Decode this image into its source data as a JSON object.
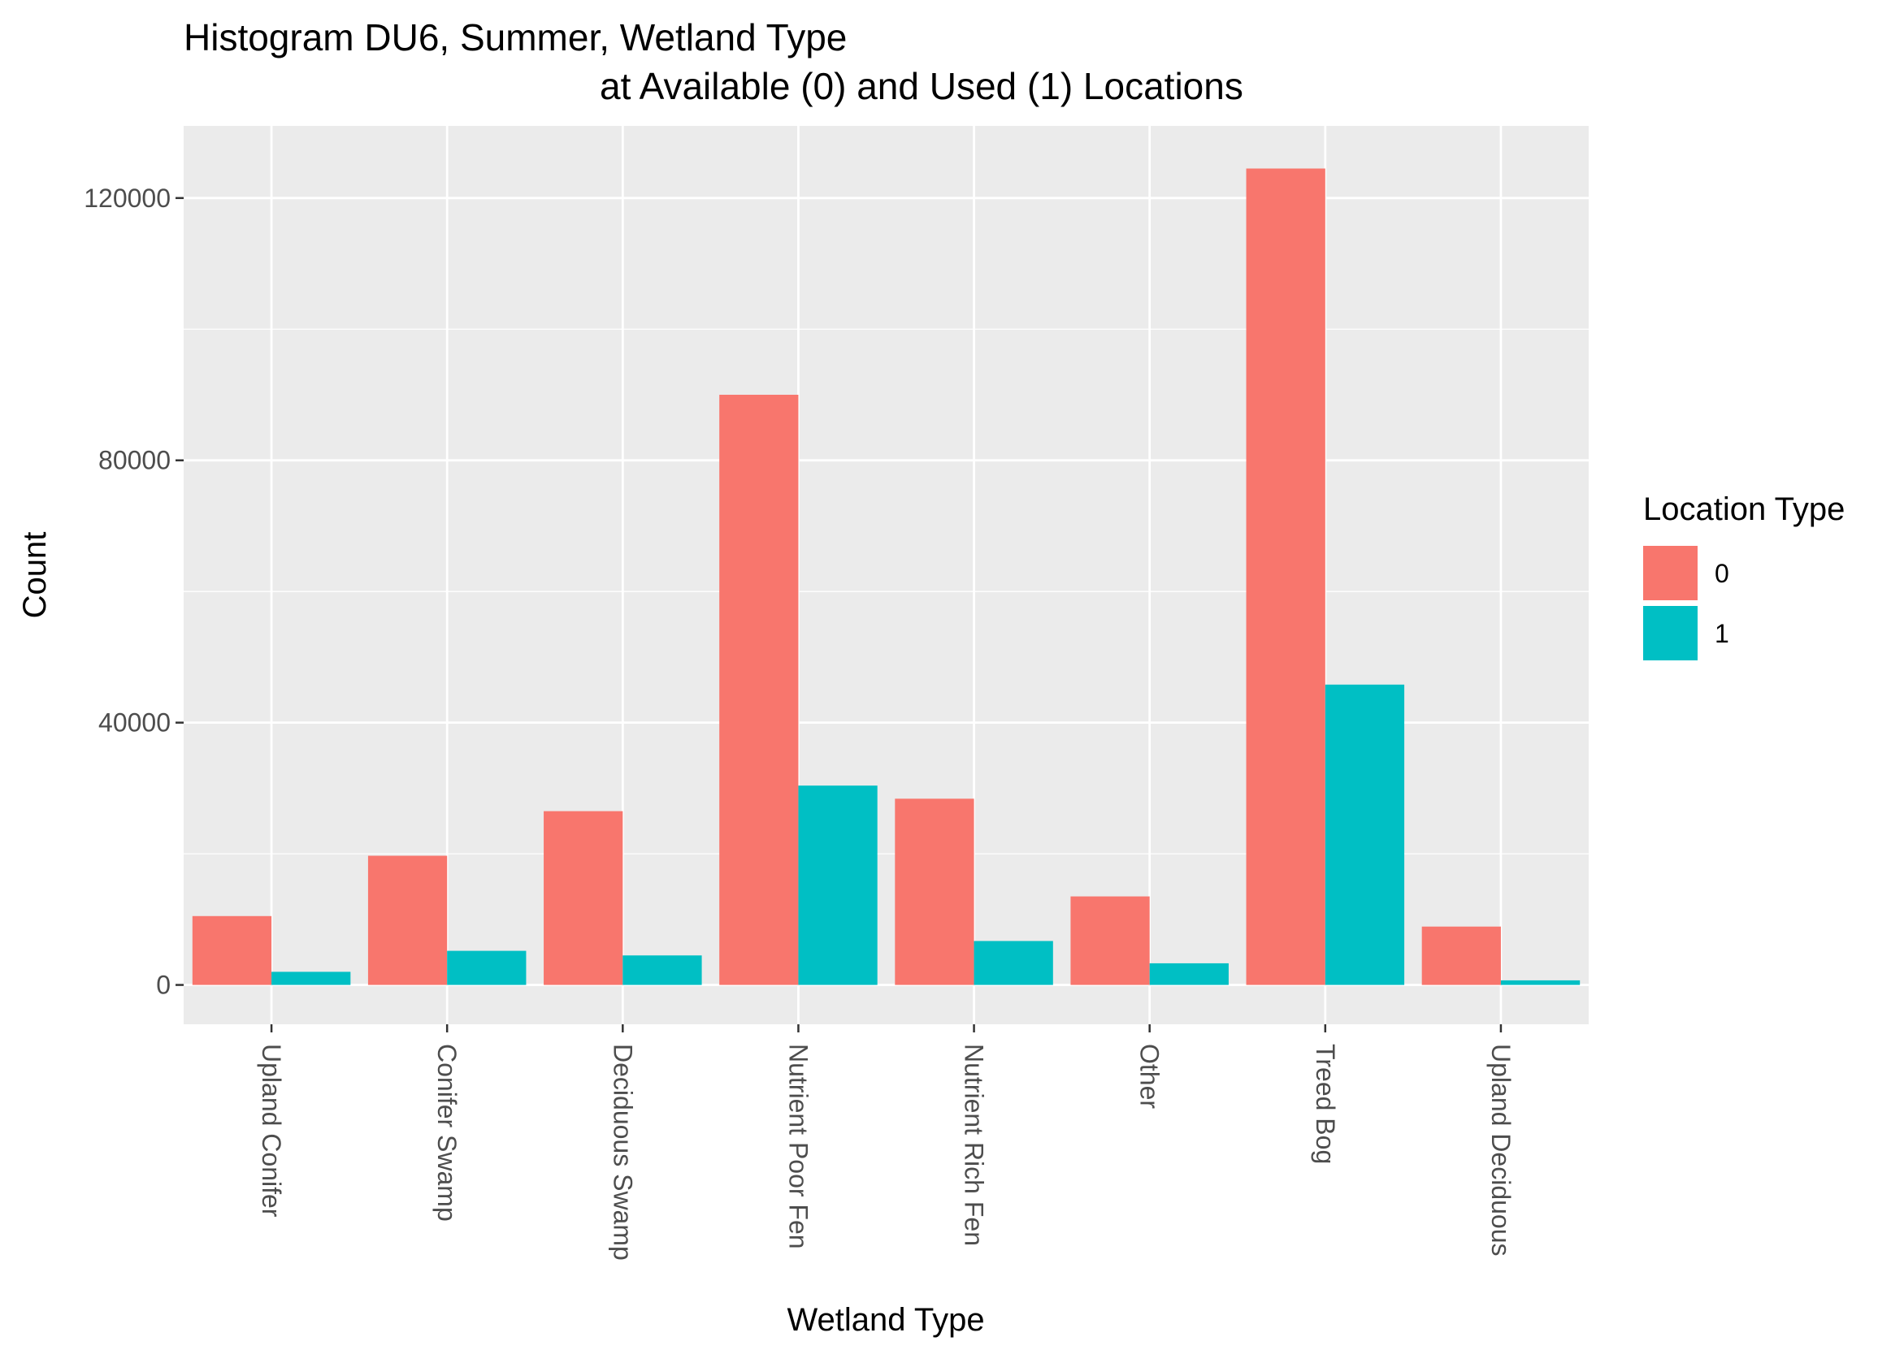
{
  "chart_data": {
    "type": "bar",
    "title_line1": "Histogram DU6, Summer, Wetland Type",
    "title_line2": "at Available (0) and Used (1) Locations",
    "xlabel": "Wetland Type",
    "ylabel": "Count",
    "categories": [
      "Upland Conifer",
      "Conifer Swamp",
      "Deciduous Swamp",
      "Nutrient Poor Fen",
      "Nutrient Rich Fen",
      "Other",
      "Treed Bog",
      "Upland Deciduous"
    ],
    "series": [
      {
        "name": "0",
        "color": "#F8766D",
        "values": [
          10500,
          19700,
          26500,
          90000,
          28400,
          13500,
          124500,
          8900
        ]
      },
      {
        "name": "1",
        "color": "#00BFC4",
        "values": [
          2000,
          5200,
          4500,
          30400,
          6700,
          3300,
          45800,
          700
        ]
      }
    ],
    "ylim": [
      -6000,
      131000
    ],
    "yticks": [
      0,
      40000,
      80000,
      120000
    ],
    "ytick_labels": [
      "0",
      "40000",
      "80000",
      "120000"
    ],
    "legend": {
      "title": "Location Type",
      "position": "right"
    },
    "grid": true,
    "background": "#EBEBEB",
    "gridline_color": "#FFFFFF"
  }
}
